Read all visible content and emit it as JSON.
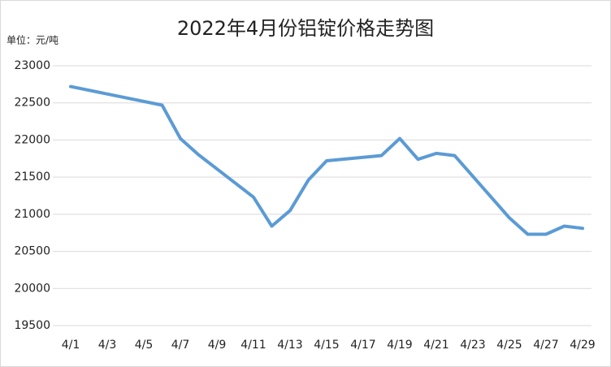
{
  "chart_data": {
    "type": "line",
    "title": "2022年4月份铝锭价格走势图",
    "unit_label": "单位：元/吨",
    "x": [
      "4/1",
      "4/6",
      "4/7",
      "4/8",
      "4/11",
      "4/12",
      "4/13",
      "4/14",
      "4/15",
      "4/18",
      "4/19",
      "4/20",
      "4/21",
      "4/22",
      "4/25",
      "4/26",
      "4/27",
      "4/28",
      "4/29"
    ],
    "values": [
      22720,
      22470,
      22020,
      21800,
      21230,
      20840,
      21050,
      21460,
      21720,
      21790,
      22020,
      21740,
      21820,
      21790,
      20950,
      20730,
      20730,
      20840,
      20810
    ],
    "color": "#5b9bd5",
    "xticks": [
      "4/1",
      "4/3",
      "4/5",
      "4/7",
      "4/9",
      "4/11",
      "4/13",
      "4/15",
      "4/17",
      "4/19",
      "4/21",
      "4/23",
      "4/25",
      "4/27",
      "4/29"
    ],
    "ylim": [
      19500,
      23000
    ],
    "yticks": [
      19500,
      20000,
      20500,
      21000,
      21500,
      22000,
      22500,
      23000
    ],
    "grid": true
  }
}
